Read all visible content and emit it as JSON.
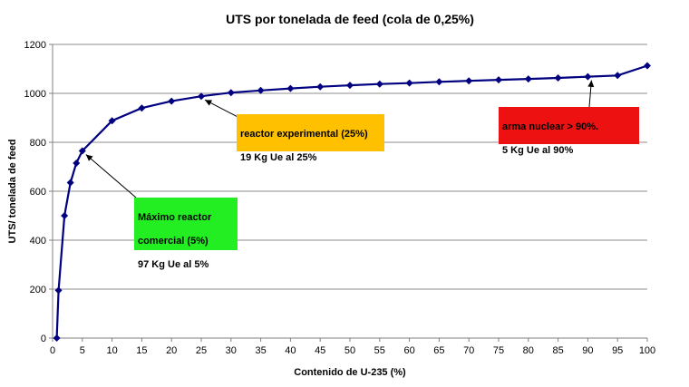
{
  "chart_data": {
    "type": "line",
    "title": "UTS por tonelada de feed (cola de 0,25%)",
    "xlabel": "Contenido de U-235 (%)",
    "ylabel": "UTS/ tonelada de feed",
    "xlim": [
      0,
      100
    ],
    "ylim": [
      0,
      1200
    ],
    "xticks": [
      0,
      5,
      10,
      15,
      20,
      25,
      30,
      35,
      40,
      45,
      50,
      55,
      60,
      65,
      70,
      75,
      80,
      85,
      90,
      95,
      100
    ],
    "yticks": [
      0,
      200,
      400,
      600,
      800,
      1000,
      1200
    ],
    "grid": "horizontal",
    "color": "#000080",
    "series": [
      {
        "x": [
          0.7,
          1,
          2,
          3,
          4,
          5,
          10,
          15,
          20,
          25,
          30,
          35,
          40,
          45,
          50,
          55,
          60,
          65,
          70,
          75,
          80,
          85,
          90,
          95,
          100
        ],
        "y": [
          0,
          195,
          500,
          635,
          715,
          765,
          888,
          940,
          968,
          988,
          1003,
          1012,
          1020,
          1027,
          1033,
          1038,
          1042,
          1047,
          1051,
          1055,
          1059,
          1063,
          1068,
          1073,
          1113
        ]
      }
    ],
    "annotations": [
      {
        "lines": [
          "Máximo  reactor",
          "comercial  (5%)",
          "97 Kg Ue al 5%"
        ],
        "color": "#22ee22",
        "points_to": [
          5,
          765
        ]
      },
      {
        "lines": [
          "reactor  experimental  (25%)",
          "19 Kg Ue al 25%"
        ],
        "color": "#ffc000",
        "points_to": [
          25,
          988
        ]
      },
      {
        "lines": [
          "arma nuclear  > 90%.",
          "5 Kg Ue al 90%"
        ],
        "color": "#ee1111",
        "points_to": [
          90,
          1068
        ]
      }
    ]
  }
}
